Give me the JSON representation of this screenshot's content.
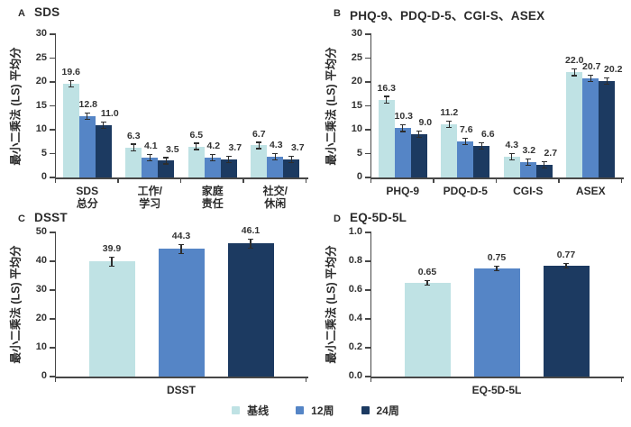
{
  "figure": {
    "background": "#ffffff"
  },
  "axis": {
    "line_color": "#474747",
    "text_color": "#323232",
    "error_bar_color": "#2d2d2d"
  },
  "legend": {
    "position": "bottom",
    "items": [
      {
        "label": "基线",
        "color": "#bfe2e4"
      },
      {
        "label": "12周",
        "color": "#5585c6"
      },
      {
        "label": "24周",
        "color": "#1c3a61"
      }
    ]
  },
  "chart_data": [
    {
      "type": "bar",
      "panel": "A",
      "title": "SDS",
      "ylabel": "最小二乘法 (LS) 平均分",
      "xlabel": "",
      "ylim": [
        0,
        30
      ],
      "yticks": [
        "0",
        "5",
        "10",
        "15",
        "20",
        "25",
        "30"
      ],
      "grid": false,
      "categories": [
        "SDS\n总分",
        "工作/\n学习",
        "家庭\n责任",
        "社交/\n休闲"
      ],
      "series": [
        {
          "name": "基线",
          "values": [
            19.6,
            6.3,
            6.5,
            6.7
          ],
          "labels": [
            "19.6",
            "6.3",
            "6.5",
            "6.7"
          ]
        },
        {
          "name": "12周",
          "values": [
            12.8,
            4.1,
            4.2,
            4.3
          ],
          "labels": [
            "12.8",
            "4.1",
            "4.2",
            "4.3"
          ]
        },
        {
          "name": "24周",
          "values": [
            11.0,
            3.5,
            3.7,
            3.7
          ],
          "labels": [
            "11.0",
            "3.5",
            "3.7",
            "3.7"
          ]
        }
      ],
      "error": 0.55
    },
    {
      "type": "bar",
      "panel": "B",
      "title": "PHQ-9、PDQ-D-5、CGI-S、ASEX",
      "ylabel": "最小二乘法 (LS) 平均分",
      "xlabel": "",
      "ylim": [
        0,
        30
      ],
      "yticks": [
        "0",
        "5",
        "10",
        "15",
        "20",
        "25",
        "30"
      ],
      "grid": false,
      "categories": [
        "PHQ-9",
        "PDQ-D-5",
        "CGI-S",
        "ASEX"
      ],
      "series": [
        {
          "name": "基线",
          "values": [
            16.3,
            11.2,
            4.3,
            22.0
          ],
          "labels": [
            "16.3",
            "11.2",
            "4.3",
            "22.0"
          ]
        },
        {
          "name": "12周",
          "values": [
            10.3,
            7.6,
            3.2,
            20.7
          ],
          "labels": [
            "10.3",
            "7.6",
            "3.2",
            "20.7"
          ]
        },
        {
          "name": "24周",
          "values": [
            9.0,
            6.6,
            2.7,
            20.2
          ],
          "labels": [
            "9.0",
            "6.6",
            "2.7",
            "20.2"
          ]
        }
      ],
      "error": 0.55
    },
    {
      "type": "bar",
      "panel": "C",
      "title": "DSST",
      "ylabel": "最小二乘法 (LS) 平均分",
      "xlabel": "",
      "ylim": [
        0,
        50
      ],
      "yticks": [
        "0",
        "10",
        "20",
        "30",
        "40",
        "50"
      ],
      "grid": false,
      "categories": [
        "DSST"
      ],
      "series": [
        {
          "name": "基线",
          "values": [
            39.9
          ],
          "labels": [
            "39.9"
          ]
        },
        {
          "name": "12周",
          "values": [
            44.3
          ],
          "labels": [
            "44.3"
          ]
        },
        {
          "name": "24周",
          "values": [
            46.1
          ],
          "labels": [
            "46.1"
          ]
        }
      ],
      "error": 1.4
    },
    {
      "type": "bar",
      "panel": "D",
      "title": "EQ-5D-5L",
      "ylabel": "最小二乘法 (LS) 平均分",
      "xlabel": "",
      "ylim": [
        0,
        1.0
      ],
      "yticks": [
        "0.0",
        "0.2",
        "0.4",
        "0.6",
        "0.8",
        "1.0"
      ],
      "grid": false,
      "categories": [
        "EQ-5D-5L"
      ],
      "series": [
        {
          "name": "基线",
          "values": [
            0.65
          ],
          "labels": [
            "0.65"
          ]
        },
        {
          "name": "12周",
          "values": [
            0.75
          ],
          "labels": [
            "0.75"
          ]
        },
        {
          "name": "24周",
          "values": [
            0.77
          ],
          "labels": [
            "0.77"
          ]
        }
      ],
      "error": 0.012
    }
  ]
}
